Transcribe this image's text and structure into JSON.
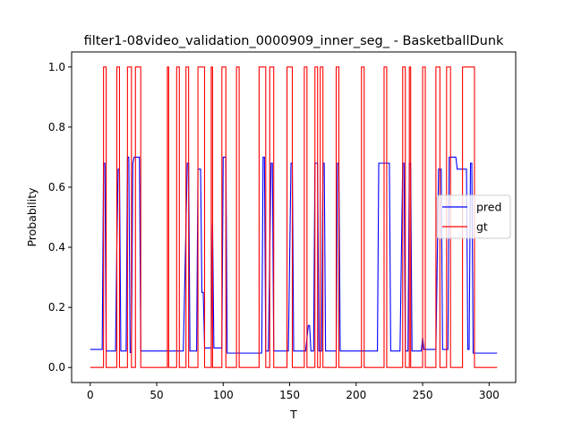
{
  "chart_data": {
    "type": "line",
    "title": "filter1-08video_validation_0000909_inner_seg_ - BasketballDunk",
    "xlabel": "T",
    "ylabel": "Probability",
    "xlim": [
      -14,
      320
    ],
    "ylim": [
      -0.05,
      1.05
    ],
    "xticks": [
      0,
      50,
      100,
      150,
      200,
      250,
      300
    ],
    "yticks": [
      0.0,
      0.2,
      0.4,
      0.6,
      0.8,
      1.0
    ],
    "xtick_labels": [
      "0",
      "50",
      "100",
      "150",
      "200",
      "250",
      "300"
    ],
    "ytick_labels": [
      "0.0",
      "0.2",
      "0.4",
      "0.6",
      "0.8",
      "1.0"
    ],
    "legend": {
      "position": "center-right",
      "entries": [
        "pred",
        "gt"
      ]
    },
    "grid": false,
    "series": [
      {
        "name": "pred",
        "color": "#0000ff",
        "points": [
          [
            0,
            0.06
          ],
          [
            9,
            0.06
          ],
          [
            10,
            0.68
          ],
          [
            11,
            0.68
          ],
          [
            12,
            0.055
          ],
          [
            19,
            0.055
          ],
          [
            20,
            0.4
          ],
          [
            21,
            0.66
          ],
          [
            22,
            0.66
          ],
          [
            23,
            0.055
          ],
          [
            27,
            0.055
          ],
          [
            28,
            0.7
          ],
          [
            29,
            0.7
          ],
          [
            30,
            0.05
          ],
          [
            31,
            0.05
          ],
          [
            32,
            0.68
          ],
          [
            33,
            0.7
          ],
          [
            37,
            0.7
          ],
          [
            38,
            0.055
          ],
          [
            70,
            0.055
          ],
          [
            73,
            0.68
          ],
          [
            74,
            0.68
          ],
          [
            75,
            0.055
          ],
          [
            80,
            0.055
          ],
          [
            81,
            0.66
          ],
          [
            83,
            0.66
          ],
          [
            84,
            0.25
          ],
          [
            85,
            0.25
          ],
          [
            86,
            0.065
          ],
          [
            91,
            0.065
          ],
          [
            92,
            0.48
          ],
          [
            93,
            0.065
          ],
          [
            99,
            0.065
          ],
          [
            100,
            0.7
          ],
          [
            102,
            0.7
          ],
          [
            103,
            0.048
          ],
          [
            129,
            0.048
          ],
          [
            130,
            0.7
          ],
          [
            131,
            0.7
          ],
          [
            132,
            0.055
          ],
          [
            134,
            0.055
          ],
          [
            136,
            0.68
          ],
          [
            137,
            0.68
          ],
          [
            138,
            0.055
          ],
          [
            149,
            0.055
          ],
          [
            151,
            0.68
          ],
          [
            152,
            0.68
          ],
          [
            153,
            0.055
          ],
          [
            162,
            0.055
          ],
          [
            164,
            0.14
          ],
          [
            165,
            0.14
          ],
          [
            166,
            0.055
          ],
          [
            168,
            0.055
          ],
          [
            169,
            0.68
          ],
          [
            171,
            0.68
          ],
          [
            172,
            0.055
          ],
          [
            174,
            0.055
          ],
          [
            175,
            0.68
          ],
          [
            176,
            0.68
          ],
          [
            177,
            0.055
          ],
          [
            185,
            0.055
          ],
          [
            186,
            0.68
          ],
          [
            187,
            0.68
          ],
          [
            188,
            0.055
          ],
          [
            216,
            0.055
          ],
          [
            217,
            0.68
          ],
          [
            225,
            0.68
          ],
          [
            226,
            0.055
          ],
          [
            233,
            0.055
          ],
          [
            235,
            0.68
          ],
          [
            236,
            0.68
          ],
          [
            237,
            0.055
          ],
          [
            239,
            0.055
          ],
          [
            240,
            0.68
          ],
          [
            241,
            0.68
          ],
          [
            242,
            0.055
          ],
          [
            249,
            0.055
          ],
          [
            250,
            0.1
          ],
          [
            251,
            0.06
          ],
          [
            260,
            0.06
          ],
          [
            262,
            0.66
          ],
          [
            264,
            0.66
          ],
          [
            265,
            0.06
          ],
          [
            269,
            0.06
          ],
          [
            270,
            0.7
          ],
          [
            275,
            0.7
          ],
          [
            276,
            0.66
          ],
          [
            283,
            0.66
          ],
          [
            284,
            0.06
          ],
          [
            285,
            0.06
          ],
          [
            286,
            0.68
          ],
          [
            287,
            0.68
          ],
          [
            288,
            0.048
          ],
          [
            306,
            0.048
          ]
        ]
      },
      {
        "name": "gt",
        "color": "#ff0000",
        "segments": [
          [
            10,
            12
          ],
          [
            20,
            22
          ],
          [
            28,
            31
          ],
          [
            34,
            38
          ],
          [
            58,
            59
          ],
          [
            65,
            67
          ],
          [
            72,
            74
          ],
          [
            81,
            86
          ],
          [
            91,
            92
          ],
          [
            99,
            102
          ],
          [
            110,
            112
          ],
          [
            127,
            132
          ],
          [
            135,
            138
          ],
          [
            148,
            152
          ],
          [
            161,
            163
          ],
          [
            169,
            171
          ],
          [
            173,
            175
          ],
          [
            185,
            187
          ],
          [
            204,
            206
          ],
          [
            221,
            223
          ],
          [
            235,
            237
          ],
          [
            240,
            241
          ],
          [
            250,
            252
          ],
          [
            260,
            263
          ],
          [
            268,
            271
          ],
          [
            280,
            289
          ]
        ],
        "base": 0.0,
        "high": 1.0,
        "x_end": 306
      }
    ]
  }
}
